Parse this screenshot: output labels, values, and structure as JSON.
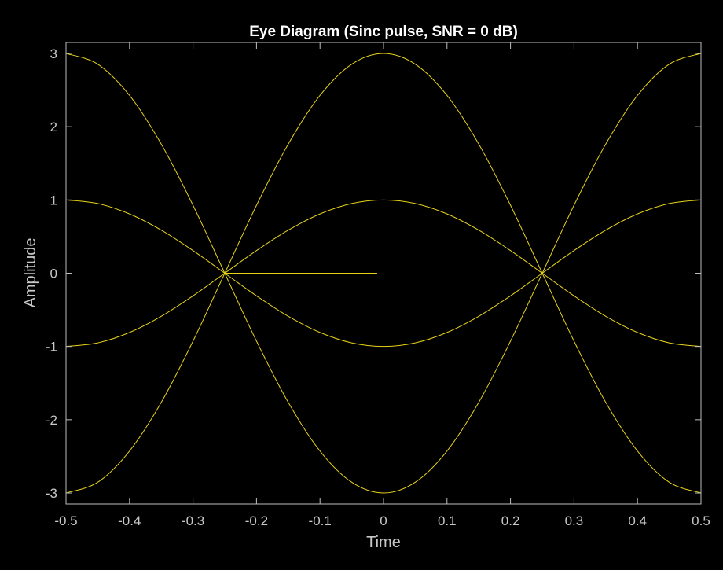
{
  "chart_data": {
    "type": "line",
    "title": "Eye Diagram (Sinc pulse, SNR = 0 dB)",
    "xlabel": "Time",
    "ylabel": "Amplitude",
    "xlim": [
      -0.5,
      0.5
    ],
    "ylim": [
      -3.15,
      3.15
    ],
    "xticks": [
      -0.5,
      -0.4,
      -0.3,
      -0.2,
      -0.1,
      0,
      0.1,
      0.2,
      0.3,
      0.4,
      0.5
    ],
    "xtick_labels": [
      "-0.5",
      "-0.4",
      "-0.3",
      "-0.2",
      "-0.1",
      "0",
      "0.1",
      "0.2",
      "0.3",
      "0.4",
      "0.5"
    ],
    "yticks": [
      -3,
      -2,
      -1,
      0,
      1,
      2,
      3
    ],
    "ytick_labels": [
      "-3",
      "-2",
      "-1",
      "0",
      "1",
      "2",
      "3"
    ],
    "grid": false,
    "legend": "none",
    "background_color": "#000000",
    "line_color": "#e6d21a",
    "series": [
      {
        "x": [
          -0.5,
          -0.45,
          -0.4,
          -0.35,
          -0.3,
          -0.25,
          -0.2,
          -0.15,
          -0.1,
          -0.05,
          0,
          0.05,
          0.1,
          0.15,
          0.2,
          0.25,
          0.3,
          0.35,
          0.4,
          0.45,
          0.5
        ],
        "values": [
          -3,
          -2.853,
          -2.427,
          -1.763,
          -0.927,
          0,
          0.927,
          1.763,
          2.427,
          2.853,
          3,
          2.853,
          2.427,
          1.763,
          0.927,
          0,
          -0.927,
          -1.763,
          -2.427,
          -2.853,
          -3
        ]
      },
      {
        "x": [
          -0.5,
          -0.45,
          -0.4,
          -0.35,
          -0.3,
          -0.25,
          -0.2,
          -0.15,
          -0.1,
          -0.05,
          0,
          0.05,
          0.1,
          0.15,
          0.2,
          0.25,
          0.3,
          0.35,
          0.4,
          0.45,
          0.5
        ],
        "values": [
          3,
          2.853,
          2.427,
          1.763,
          0.927,
          0,
          -0.927,
          -1.763,
          -2.427,
          -2.853,
          -3,
          -2.853,
          -2.427,
          -1.763,
          -0.927,
          0,
          0.927,
          1.763,
          2.427,
          2.853,
          3
        ]
      },
      {
        "x": [
          -0.5,
          -0.45,
          -0.4,
          -0.35,
          -0.3,
          -0.25,
          -0.2,
          -0.15,
          -0.1,
          -0.05,
          0,
          0.05,
          0.1,
          0.15,
          0.2,
          0.25,
          0.3,
          0.35,
          0.4,
          0.45,
          0.5
        ],
        "values": [
          -1,
          -0.951,
          -0.809,
          -0.588,
          -0.309,
          0,
          0.309,
          0.588,
          0.809,
          0.951,
          1,
          0.951,
          0.809,
          0.588,
          0.309,
          0,
          -0.309,
          -0.588,
          -0.809,
          -0.951,
          -1
        ]
      },
      {
        "x": [
          -0.5,
          -0.45,
          -0.4,
          -0.35,
          -0.3,
          -0.25,
          -0.2,
          -0.15,
          -0.1,
          -0.05,
          0,
          0.05,
          0.1,
          0.15,
          0.2,
          0.25,
          0.3,
          0.35,
          0.4,
          0.45,
          0.5
        ],
        "values": [
          1,
          0.951,
          0.809,
          0.588,
          0.309,
          0,
          -0.309,
          -0.588,
          -0.809,
          -0.951,
          -1,
          -0.951,
          -0.809,
          -0.588,
          -0.309,
          0,
          0.309,
          0.588,
          0.809,
          0.951,
          1
        ]
      },
      {
        "x": [
          -0.25,
          -0.2,
          -0.15,
          -0.1,
          -0.05,
          -0.01
        ],
        "values": [
          0,
          0,
          0,
          0,
          0,
          0
        ]
      }
    ]
  }
}
